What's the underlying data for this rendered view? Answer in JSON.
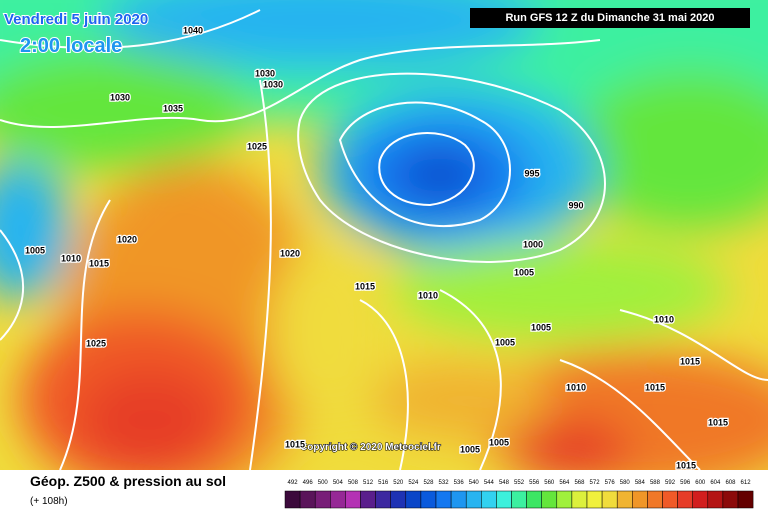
{
  "header": {
    "date": "Vendredi 5 juin 2020",
    "time": "2:00 locale",
    "run": "Run GFS 12 Z du Dimanche 31 mai 2020"
  },
  "copyright": "Copyright © 2020 Meteociel.fr",
  "footer": {
    "title": "Géop. Z500 & pression au sol",
    "lead": "(+ 108h)"
  },
  "isobar_labels": [
    "1040",
    "1030",
    "1035",
    "1030",
    "1030",
    "1025",
    "995",
    "990",
    "1000",
    "1005",
    "1020",
    "1005",
    "1010",
    "1015",
    "1020",
    "1015",
    "1010",
    "1025",
    "1005",
    "1005",
    "1010",
    "1015",
    "1010",
    "1015",
    "1015",
    "1015",
    "1005",
    "1005",
    "1015"
  ],
  "legend": {
    "ticks": [
      492,
      496,
      500,
      504,
      508,
      512,
      516,
      520,
      524,
      528,
      532,
      536,
      540,
      544,
      548,
      552,
      556,
      560,
      564,
      568,
      572,
      576,
      580,
      584,
      588,
      592,
      596,
      600,
      604,
      608,
      612
    ],
    "colors": [
      "#3c0a3c",
      "#5a145a",
      "#781e78",
      "#962896",
      "#b432b4",
      "#5a1e8c",
      "#3c28a0",
      "#1e32b4",
      "#0a46c8",
      "#0a5adc",
      "#1478f0",
      "#1e96f0",
      "#28b4f0",
      "#32d2f0",
      "#3cf0dc",
      "#3cf0a0",
      "#3ce664",
      "#64e63c",
      "#a0f03c",
      "#dcf03c",
      "#f0f03c",
      "#f0dc3c",
      "#f0b432",
      "#f09628",
      "#f07828",
      "#f05a28",
      "#e63c28",
      "#d21e1e",
      "#b41414",
      "#8c0a0a",
      "#640000"
    ]
  }
}
